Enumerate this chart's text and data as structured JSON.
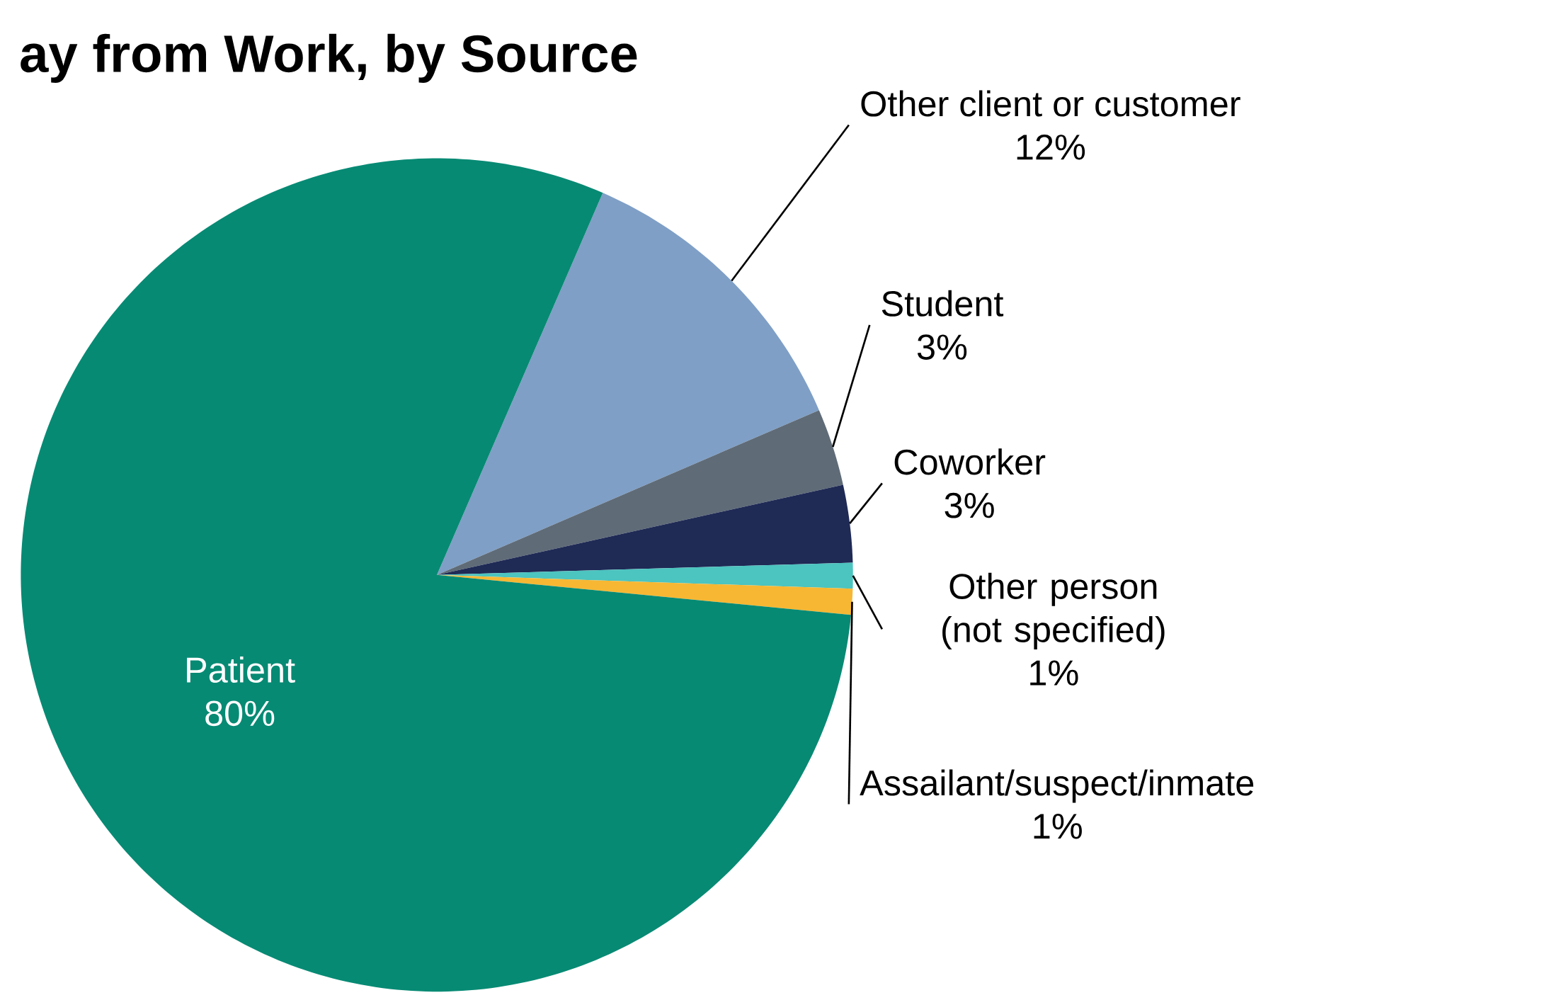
{
  "chart_data": {
    "type": "pie",
    "title": "ay from Work, by Source",
    "categories": [
      "Other client or customer",
      "Student",
      "Coworker",
      "Other person (not specified)",
      "Assailant/suspect/inmate",
      "Patient"
    ],
    "values": [
      12,
      3,
      3,
      1,
      1,
      80
    ],
    "colors": [
      "#7f9fc6",
      "#5f6b77",
      "#1f2a55",
      "#4cc4bf",
      "#f7b733",
      "#078a74"
    ],
    "value_labels": [
      "12%",
      "3%",
      "3%",
      "1%",
      "1%",
      "80%"
    ]
  }
}
